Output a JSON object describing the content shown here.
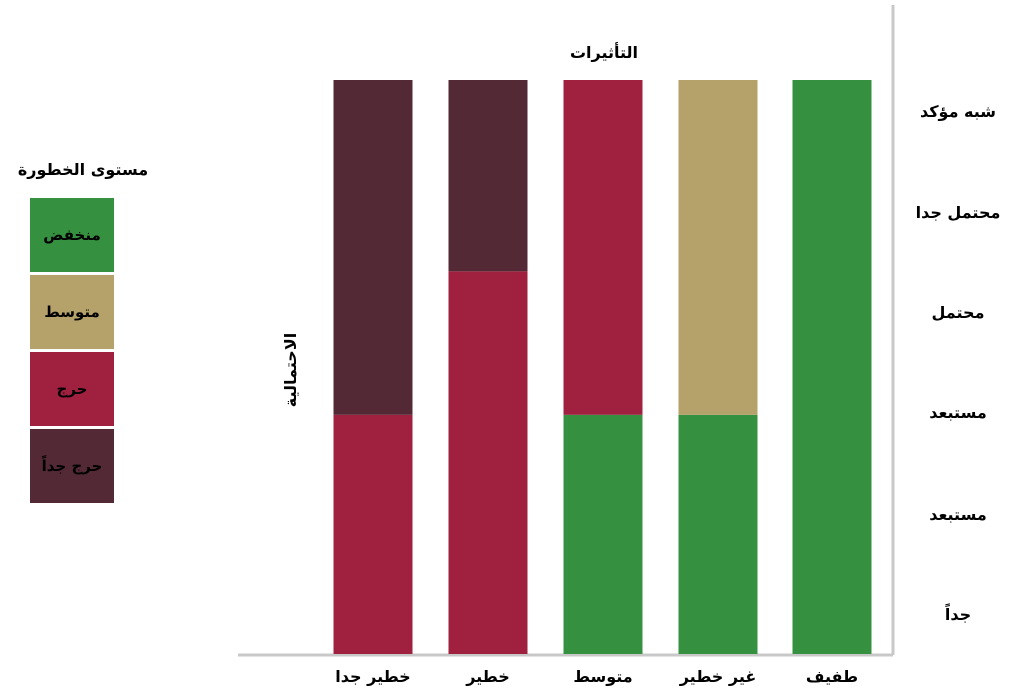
{
  "chart_data": {
    "type": "bar",
    "title": "التأثيرات",
    "ylabel": "الاحتمالية",
    "xlabel": "",
    "categories": [
      "طفيف",
      "غير خطير",
      "متوسط",
      "خطير",
      "خطير جدا"
    ],
    "y_tick_labels": [
      "جداً",
      "مستبعد",
      "مستبعد",
      "محتمل",
      "محتمل جدا",
      "شبه مؤكد"
    ],
    "ylim": [
      0,
      6
    ],
    "series": [
      {
        "name": "منخفض",
        "values": [
          6,
          2.5,
          2.5,
          0,
          0
        ]
      },
      {
        "name": "متوسط",
        "values": [
          0,
          3.5,
          0,
          0,
          0
        ]
      },
      {
        "name": "حرج",
        "values": [
          0,
          0,
          3.5,
          4,
          2.5
        ]
      },
      {
        "name": "حرج جداً",
        "values": [
          0,
          0,
          0,
          2,
          3.5
        ]
      }
    ],
    "colors": [
      "#359140",
      "#b5a26a",
      "#a0213f",
      "#522935"
    ],
    "legend_position": "left",
    "grid": false
  },
  "legend": {
    "title": "مستوى الخطورة",
    "items": [
      {
        "label": "منخفض",
        "color": "#359140"
      },
      {
        "label": "متوسط",
        "color": "#b5a26a"
      },
      {
        "label": "حرج",
        "color": "#a0213f"
      },
      {
        "label": "حرج جداً",
        "color": "#522935"
      }
    ]
  }
}
